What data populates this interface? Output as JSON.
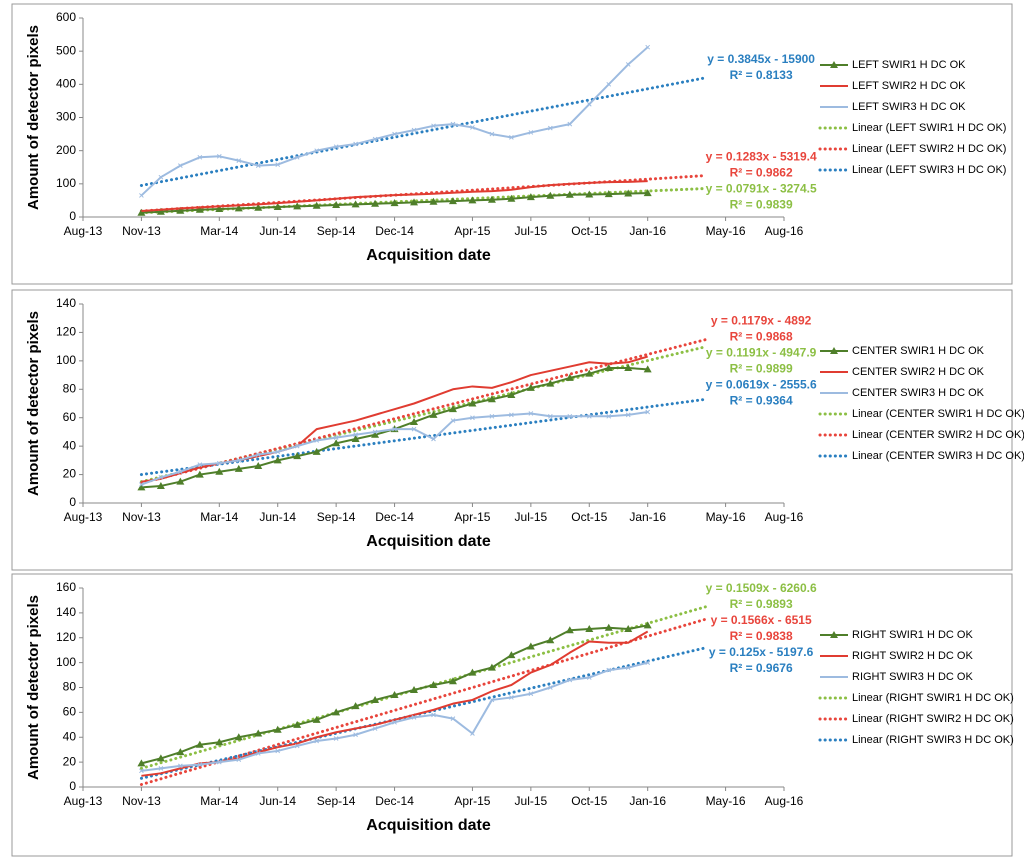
{
  "chart_data": [
    {
      "type": "line",
      "xlabel": "Acquisition date",
      "ylabel": "Amount of detector pixels",
      "xlim": [
        "2013-08",
        "2016-08"
      ],
      "xticks": [
        {
          "value": "2013-08",
          "label": "Aug-13"
        },
        {
          "value": "2013-11",
          "label": "Nov-13"
        },
        {
          "value": "2014-03",
          "label": "Mar-14"
        },
        {
          "value": "2014-06",
          "label": "Jun-14"
        },
        {
          "value": "2014-09",
          "label": "Sep-14"
        },
        {
          "value": "2014-12",
          "label": "Dec-14"
        },
        {
          "value": "2015-04",
          "label": "Apr-15"
        },
        {
          "value": "2015-07",
          "label": "Jul-15"
        },
        {
          "value": "2015-10",
          "label": "Oct-15"
        },
        {
          "value": "2016-01",
          "label": "Jan-16"
        },
        {
          "value": "2016-05",
          "label": "May-16"
        },
        {
          "value": "2016-08",
          "label": "Aug-16"
        }
      ],
      "ylim": [
        0,
        600
      ],
      "yticks": [
        0,
        100,
        200,
        300,
        400,
        500,
        600
      ],
      "x": [
        "2013-11",
        "2013-12",
        "2014-01",
        "2014-02",
        "2014-03",
        "2014-04",
        "2014-05",
        "2014-06",
        "2014-07",
        "2014-08",
        "2014-09",
        "2014-10",
        "2014-11",
        "2014-12",
        "2015-01",
        "2015-02",
        "2015-03",
        "2015-04",
        "2015-05",
        "2015-06",
        "2015-07",
        "2015-08",
        "2015-09",
        "2015-10",
        "2015-11",
        "2015-12",
        "2016-01"
      ],
      "series": [
        {
          "name": "LEFT SWIR1 H DC OK",
          "color": "#4f7f2a",
          "marker": "triangle",
          "values": [
            13,
            16,
            19,
            22,
            24,
            26,
            28,
            30,
            32,
            34,
            36,
            38,
            40,
            42,
            44,
            46,
            48,
            50,
            52,
            55,
            60,
            64,
            67,
            68,
            69,
            71,
            72
          ]
        },
        {
          "name": "LEFT SWIR2 H DC OK",
          "color": "#e03c31",
          "values": [
            18,
            22,
            26,
            29,
            32,
            35,
            38,
            42,
            46,
            50,
            55,
            60,
            63,
            66,
            68,
            70,
            73,
            76,
            78,
            82,
            90,
            96,
            100,
            103,
            105,
            106,
            108
          ]
        },
        {
          "name": "LEFT SWIR3 H DC OK",
          "color": "#9dbbe0",
          "marker": "cross",
          "values": [
            65,
            120,
            155,
            180,
            183,
            170,
            155,
            158,
            180,
            200,
            212,
            220,
            235,
            250,
            262,
            275,
            280,
            270,
            250,
            240,
            255,
            268,
            280,
            340,
            400,
            460,
            512
          ]
        }
      ],
      "trendlines": [
        {
          "name": "Linear (LEFT SWIR1 H DC OK)",
          "color": "#8cbf44",
          "x": [
            "2013-11",
            "2016-04"
          ],
          "values": [
            13,
            86
          ],
          "equation": "y = 0.0791x - 3274.5",
          "r_squared": "R² = 0.9839"
        },
        {
          "name": "Linear (LEFT SWIR2 H DC OK)",
          "color": "#e8453c",
          "x": [
            "2013-11",
            "2016-04"
          ],
          "values": [
            18,
            125
          ],
          "equation": "y = 0.1283x - 5319.4",
          "r_squared": "R² = 0.9862"
        },
        {
          "name": "Linear (LEFT SWIR3 H DC OK)",
          "color": "#2a7fc0",
          "x": [
            "2013-11",
            "2016-04"
          ],
          "values": [
            95,
            420
          ],
          "equation": "y = 0.3845x - 15900",
          "r_squared": "R² = 0.8133"
        }
      ]
    },
    {
      "type": "line",
      "xlabel": "Acquisition date",
      "ylabel": "Amount of detector pixels",
      "xlim": [
        "2013-08",
        "2016-08"
      ],
      "xticks": [
        {
          "value": "2013-08",
          "label": "Aug-13"
        },
        {
          "value": "2013-11",
          "label": "Nov-13"
        },
        {
          "value": "2014-03",
          "label": "Mar-14"
        },
        {
          "value": "2014-06",
          "label": "Jun-14"
        },
        {
          "value": "2014-09",
          "label": "Sep-14"
        },
        {
          "value": "2014-12",
          "label": "Dec-14"
        },
        {
          "value": "2015-04",
          "label": "Apr-15"
        },
        {
          "value": "2015-07",
          "label": "Jul-15"
        },
        {
          "value": "2015-10",
          "label": "Oct-15"
        },
        {
          "value": "2016-01",
          "label": "Jan-16"
        },
        {
          "value": "2016-05",
          "label": "May-16"
        },
        {
          "value": "2016-08",
          "label": "Aug-16"
        }
      ],
      "ylim": [
        0,
        140
      ],
      "yticks": [
        0,
        20,
        40,
        60,
        80,
        100,
        120,
        140
      ],
      "x": [
        "2013-11",
        "2013-12",
        "2014-01",
        "2014-02",
        "2014-03",
        "2014-04",
        "2014-05",
        "2014-06",
        "2014-07",
        "2014-08",
        "2014-09",
        "2014-10",
        "2014-11",
        "2014-12",
        "2015-01",
        "2015-02",
        "2015-03",
        "2015-04",
        "2015-05",
        "2015-06",
        "2015-07",
        "2015-08",
        "2015-09",
        "2015-10",
        "2015-11",
        "2015-12",
        "2016-01"
      ],
      "series": [
        {
          "name": "CENTER SWIR1 H DC OK",
          "color": "#4f7f2a",
          "marker": "triangle",
          "values": [
            11,
            12,
            15,
            20,
            22,
            24,
            26,
            30,
            33,
            36,
            42,
            45,
            48,
            52,
            57,
            62,
            66,
            70,
            73,
            76,
            81,
            84,
            88,
            91,
            95,
            95,
            94
          ]
        },
        {
          "name": "CENTER SWIR2 H DC OK",
          "color": "#e03c31",
          "values": [
            15,
            17,
            21,
            25,
            28,
            30,
            33,
            36,
            40,
            52,
            55,
            58,
            62,
            66,
            70,
            75,
            80,
            82,
            81,
            85,
            90,
            93,
            96,
            99,
            98,
            99,
            103
          ]
        },
        {
          "name": "CENTER SWIR3 H DC OK",
          "color": "#9dbbe0",
          "marker": "cross",
          "values": [
            13,
            18,
            22,
            27,
            28,
            30,
            34,
            36,
            40,
            44,
            46,
            48,
            50,
            52,
            52,
            45,
            58,
            60,
            61,
            62,
            63,
            61,
            61,
            61,
            61,
            62,
            64
          ]
        }
      ],
      "trendlines": [
        {
          "name": "Linear (CENTER SWIR1 H DC OK)",
          "color": "#8cbf44",
          "x": [
            "2013-11",
            "2016-04"
          ],
          "values": [
            15,
            110
          ],
          "equation": "y = 0.1191x - 4947.9",
          "r_squared": "R² = 0.9899"
        },
        {
          "name": "Linear (CENTER SWIR2 H DC OK)",
          "color": "#e8453c",
          "x": [
            "2013-11",
            "2016-04"
          ],
          "values": [
            14,
            115
          ],
          "equation": "y = 0.1179x - 4892",
          "r_squared": "R² = 0.9868"
        },
        {
          "name": "Linear (CENTER SWIR3 H DC OK)",
          "color": "#2a7fc0",
          "x": [
            "2013-11",
            "2016-04"
          ],
          "values": [
            20,
            73
          ],
          "equation": "y = 0.0619x - 2555.6",
          "r_squared": "R² = 0.9364"
        }
      ]
    },
    {
      "type": "line",
      "xlabel": "Acquisition date",
      "ylabel": "Amount of detector pixels",
      "xlim": [
        "2013-08",
        "2016-08"
      ],
      "xticks": [
        {
          "value": "2013-08",
          "label": "Aug-13"
        },
        {
          "value": "2013-11",
          "label": "Nov-13"
        },
        {
          "value": "2014-03",
          "label": "Mar-14"
        },
        {
          "value": "2014-06",
          "label": "Jun-14"
        },
        {
          "value": "2014-09",
          "label": "Sep-14"
        },
        {
          "value": "2014-12",
          "label": "Dec-14"
        },
        {
          "value": "2015-04",
          "label": "Apr-15"
        },
        {
          "value": "2015-07",
          "label": "Jul-15"
        },
        {
          "value": "2015-10",
          "label": "Oct-15"
        },
        {
          "value": "2016-01",
          "label": "Jan-16"
        },
        {
          "value": "2016-05",
          "label": "May-16"
        },
        {
          "value": "2016-08",
          "label": "Aug-16"
        }
      ],
      "ylim": [
        0,
        160
      ],
      "yticks": [
        0,
        20,
        40,
        60,
        80,
        100,
        120,
        140,
        160
      ],
      "x": [
        "2013-11",
        "2013-12",
        "2014-01",
        "2014-02",
        "2014-03",
        "2014-04",
        "2014-05",
        "2014-06",
        "2014-07",
        "2014-08",
        "2014-09",
        "2014-10",
        "2014-11",
        "2014-12",
        "2015-01",
        "2015-02",
        "2015-03",
        "2015-04",
        "2015-05",
        "2015-06",
        "2015-07",
        "2015-08",
        "2015-09",
        "2015-10",
        "2015-11",
        "2015-12",
        "2016-01"
      ],
      "series": [
        {
          "name": "RIGHT SWIR1 H DC OK",
          "color": "#4f7f2a",
          "marker": "triangle",
          "values": [
            19,
            23,
            28,
            34,
            36,
            40,
            43,
            46,
            50,
            54,
            60,
            65,
            70,
            74,
            78,
            82,
            85,
            92,
            96,
            106,
            113,
            118,
            126,
            127,
            128,
            127,
            130
          ]
        },
        {
          "name": "RIGHT SWIR2 H DC OK",
          "color": "#e03c31",
          "values": [
            9,
            11,
            15,
            19,
            20,
            23,
            28,
            32,
            35,
            40,
            44,
            47,
            50,
            54,
            58,
            62,
            67,
            70,
            77,
            82,
            92,
            98,
            108,
            117,
            116,
            116,
            125
          ]
        },
        {
          "name": "RIGHT SWIR3 H DC OK",
          "color": "#9dbbe0",
          "marker": "cross",
          "values": [
            13,
            15,
            17,
            18,
            20,
            22,
            27,
            29,
            33,
            37,
            39,
            42,
            47,
            52,
            56,
            58,
            55,
            43,
            70,
            72,
            75,
            80,
            86,
            88,
            94,
            96,
            100
          ]
        }
      ],
      "trendlines": [
        {
          "name": "Linear (RIGHT SWIR1 H DC OK)",
          "color": "#8cbf44",
          "x": [
            "2013-11",
            "2016-04"
          ],
          "values": [
            15,
            145
          ],
          "equation": "y = 0.1509x - 6260.6",
          "r_squared": "R² = 0.9893"
        },
        {
          "name": "Linear (RIGHT SWIR2 H DC OK)",
          "color": "#e8453c",
          "x": [
            "2013-11",
            "2016-04"
          ],
          "values": [
            2,
            135
          ],
          "equation": "y = 0.1566x - 6515",
          "r_squared": "R² = 0.9838"
        },
        {
          "name": "Linear (RIGHT SWIR3 H DC OK)",
          "color": "#2a7fc0",
          "x": [
            "2013-11",
            "2016-04"
          ],
          "values": [
            7,
            112
          ],
          "equation": "y = 0.125x - 5197.6",
          "r_squared": "R² = 0.9676"
        }
      ]
    }
  ]
}
